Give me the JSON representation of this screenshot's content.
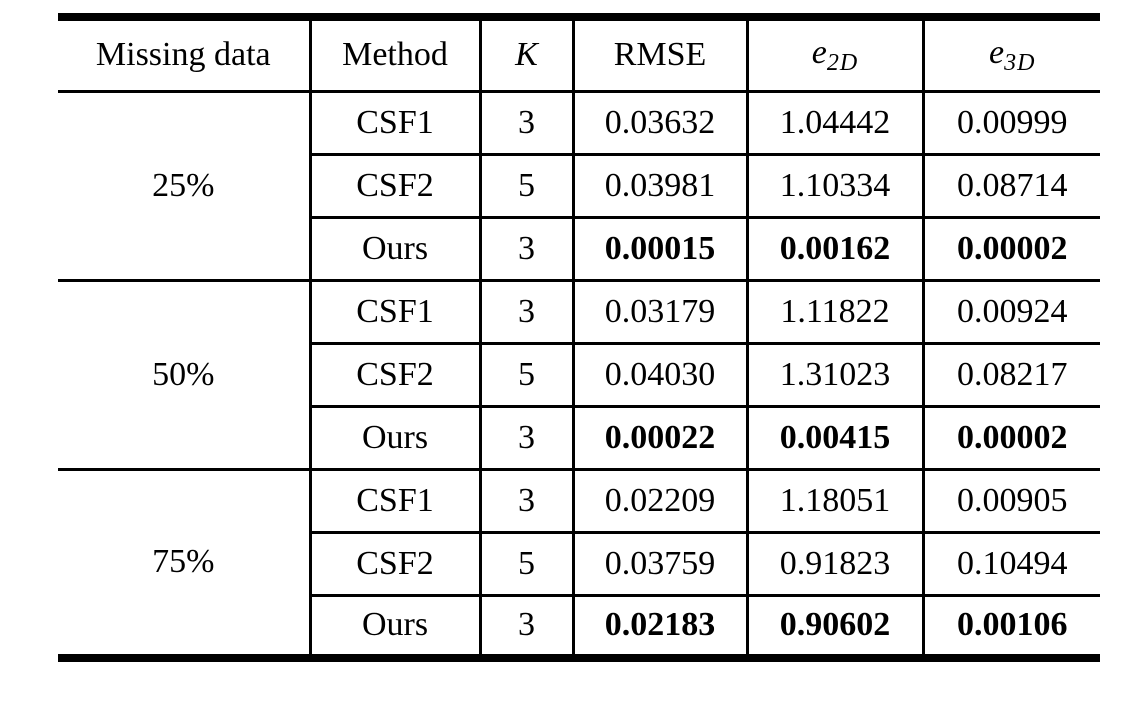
{
  "colors": {
    "background": "#ffffff",
    "text": "#000000",
    "rule": "#000000"
  },
  "table": {
    "columns": [
      {
        "label": "Missing data"
      },
      {
        "label": "Method"
      },
      {
        "label": "K"
      },
      {
        "label": "RMSE"
      },
      {
        "base": "e",
        "sub": "2D"
      },
      {
        "base": "e",
        "sub": "3D"
      }
    ],
    "groups": [
      {
        "missing": "25%",
        "rows": [
          {
            "method": "CSF1",
            "k": "3",
            "rmse": "0.03632",
            "e2d": "1.04442",
            "e3d": "0.00999",
            "bold": false
          },
          {
            "method": "CSF2",
            "k": "5",
            "rmse": "0.03981",
            "e2d": "1.10334",
            "e3d": "0.08714",
            "bold": false
          },
          {
            "method": "Ours",
            "k": "3",
            "rmse": "0.00015",
            "e2d": "0.00162",
            "e3d": "0.00002",
            "bold": true
          }
        ]
      },
      {
        "missing": "50%",
        "rows": [
          {
            "method": "CSF1",
            "k": "3",
            "rmse": "0.03179",
            "e2d": "1.11822",
            "e3d": "0.00924",
            "bold": false
          },
          {
            "method": "CSF2",
            "k": "5",
            "rmse": "0.04030",
            "e2d": "1.31023",
            "e3d": "0.08217",
            "bold": false
          },
          {
            "method": "Ours",
            "k": "3",
            "rmse": "0.00022",
            "e2d": "0.00415",
            "e3d": "0.00002",
            "bold": true
          }
        ]
      },
      {
        "missing": "75%",
        "rows": [
          {
            "method": "CSF1",
            "k": "3",
            "rmse": "0.02209",
            "e2d": "1.18051",
            "e3d": "0.00905",
            "bold": false
          },
          {
            "method": "CSF2",
            "k": "5",
            "rmse": "0.03759",
            "e2d": "0.91823",
            "e3d": "0.10494",
            "bold": false
          },
          {
            "method": "Ours",
            "k": "3",
            "rmse": "0.02183",
            "e2d": "0.90602",
            "e3d": "0.00106",
            "bold": true
          }
        ]
      }
    ]
  }
}
